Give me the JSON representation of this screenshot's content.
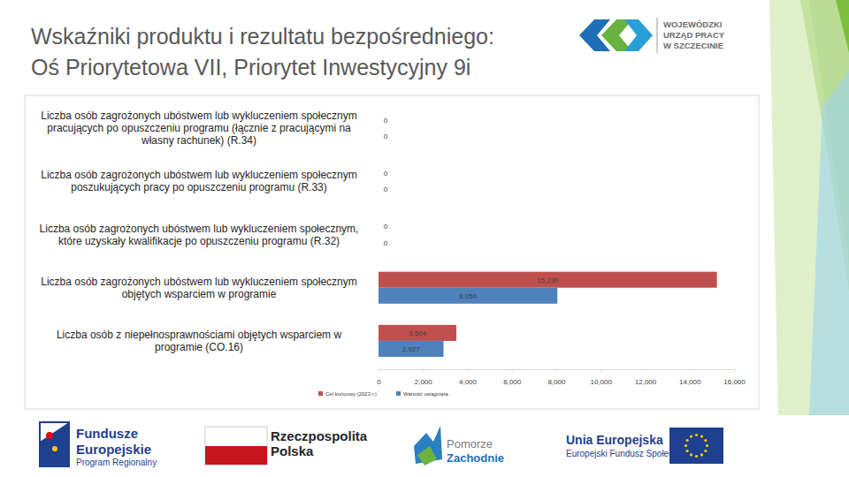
{
  "page": {
    "logo_lines": [
      "WOJEWÓDZKI",
      "URZĄD PRACY",
      "W SZCZECINIE"
    ],
    "footer_logos": [
      [
        "Fundusze",
        "Europejskie",
        "Program Regionalny"
      ],
      [
        "Rzeczpospolita",
        "Polska"
      ],
      [
        "Pomorze",
        "Zachodnie"
      ],
      [
        "Unia Europejska",
        "Europejski Fundusz Społeczny"
      ]
    ]
  },
  "chart_data": {
    "type": "bar",
    "orientation": "horizontal",
    "title": "Wskaźniki produktu i rezultatu bezpośredniego:",
    "subtitle": "Oś Priorytetowa VII, Priorytet Inwestycyjny 9i",
    "categories": [
      "Liczba osób zagrożonych ubóstwem lub wykluczeniem społecznym pracujących po opuszczeniu programu (łącznie z pracującymi na własny rachunek) (R.34)",
      "Liczba osób zagrożonych ubóstwem lub wykluczeniem społecznym poszukujących pracy po opuszczeniu programu (R.33)",
      "Liczba osób zagrożonych ubóstwem lub wykluczeniem społecznym, które uzyskały kwalifikacje po opuszczeniu programu (R.32)",
      "Liczba osób zagrożonych ubóstwem lub wykluczeniem społecznym objętych wsparciem w programie",
      "Liczba osób z niepełnosprawnościami objętych wsparciem w programie (CO.16)"
    ],
    "series": [
      {
        "name": "Cel końcowy (2023 r.)",
        "color": "#c0504d",
        "values": [
          0,
          0,
          0,
          15230,
          3504
        ],
        "value_labels": [
          "0",
          "0",
          "0",
          "15,230",
          "3,504"
        ]
      },
      {
        "name": "Wartość osiągnięta",
        "color": "#4f81bd",
        "values": [
          0,
          0,
          0,
          8050,
          2927
        ],
        "value_labels": [
          "0",
          "0",
          "0",
          "8,050",
          "2,927"
        ]
      }
    ],
    "xlim": [
      0,
      16000
    ],
    "xticks": [
      0,
      {
        "value": 2000,
        "label": "2,000"
      },
      {
        "value": 4000,
        "label": "4,000"
      },
      {
        "value": 6000,
        "label": "6,000"
      },
      {
        "value": 8000,
        "label": "8,000"
      },
      {
        "value": 10000,
        "label": "10,000"
      },
      {
        "value": 12000,
        "label": "12,000"
      },
      {
        "value": 14000,
        "label": "14,000"
      },
      {
        "value": 16000,
        "label": "16,000"
      }
    ],
    "grid": false,
    "data_labels": true,
    "legend": "bottom"
  }
}
